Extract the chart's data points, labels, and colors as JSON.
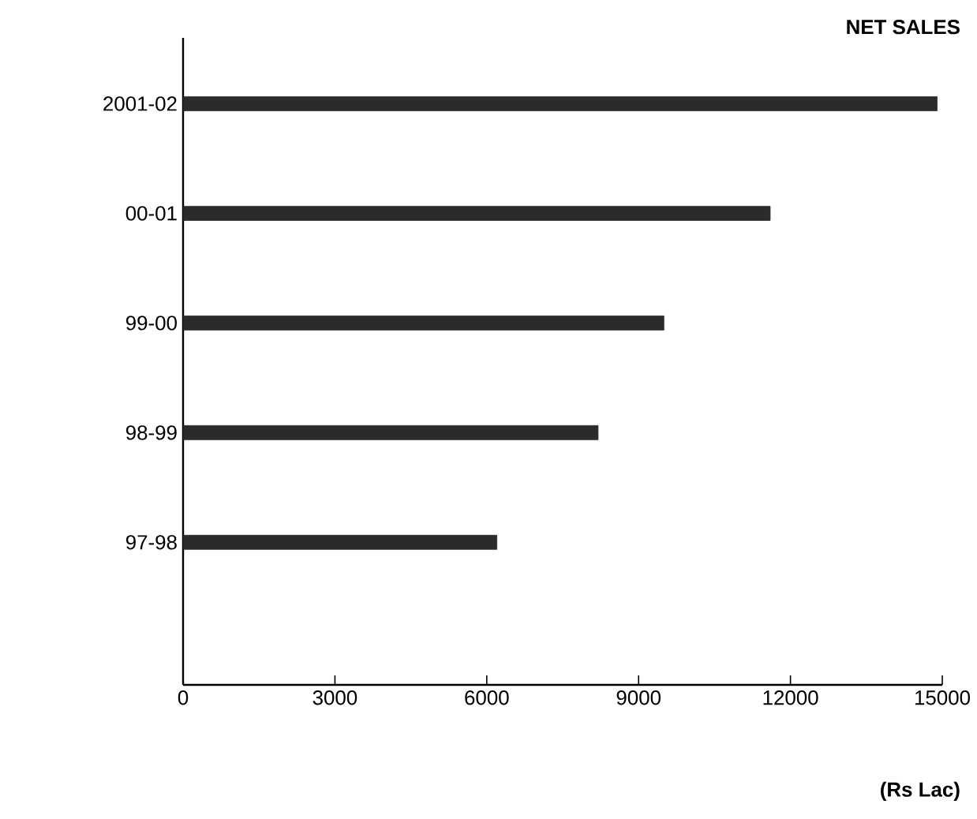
{
  "chart_data": {
    "type": "bar",
    "orientation": "horizontal",
    "title": "NET SALES",
    "xlabel": "(Rs Lac)",
    "categories": [
      "2001-02",
      "00-01",
      "99-00",
      "98-99",
      "97-98"
    ],
    "values": [
      14900,
      11600,
      9500,
      8200,
      6200
    ],
    "color": "#2b2b2b",
    "xlim": [
      0,
      15000
    ],
    "xticks": [
      0,
      3000,
      6000,
      9000,
      12000,
      15000
    ],
    "grid": false
  }
}
